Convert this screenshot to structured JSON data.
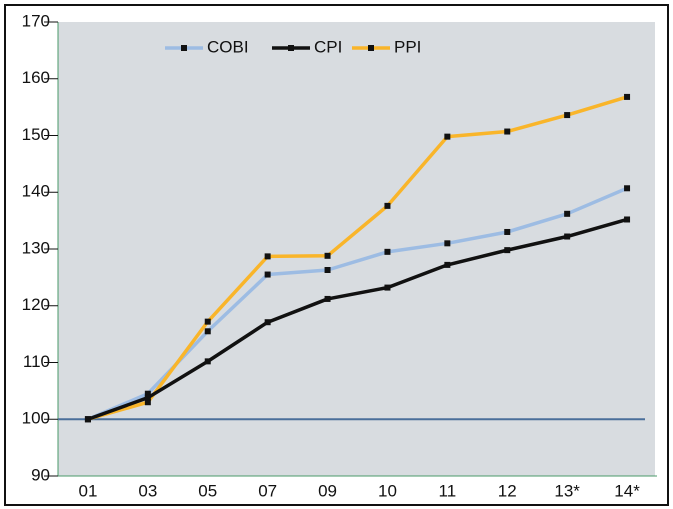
{
  "chart_data": {
    "type": "line",
    "categories": [
      "01",
      "03",
      "05",
      "07",
      "09",
      "10",
      "11",
      "12",
      "13*",
      "14*"
    ],
    "series": [
      {
        "name": "COBI",
        "color": "#9dbce3",
        "values": [
          100,
          104.5,
          115.5,
          125.5,
          126.3,
          129.5,
          131,
          133,
          136.2,
          140.7
        ]
      },
      {
        "name": "CPI",
        "color": "#111111",
        "values": [
          100,
          103.8,
          110.2,
          117.1,
          121.2,
          123.2,
          127.2,
          129.8,
          132.2,
          135.2
        ]
      },
      {
        "name": "PPI",
        "color": "#f9b52a",
        "values": [
          100,
          103,
          117.2,
          128.7,
          128.8,
          137.6,
          149.8,
          150.7,
          153.6,
          156.8
        ]
      }
    ],
    "reference_line": 100,
    "ylim": [
      90,
      170
    ],
    "yticks": [
      90,
      100,
      110,
      120,
      130,
      140,
      150,
      160,
      170
    ],
    "grid": false,
    "legend": "top"
  }
}
